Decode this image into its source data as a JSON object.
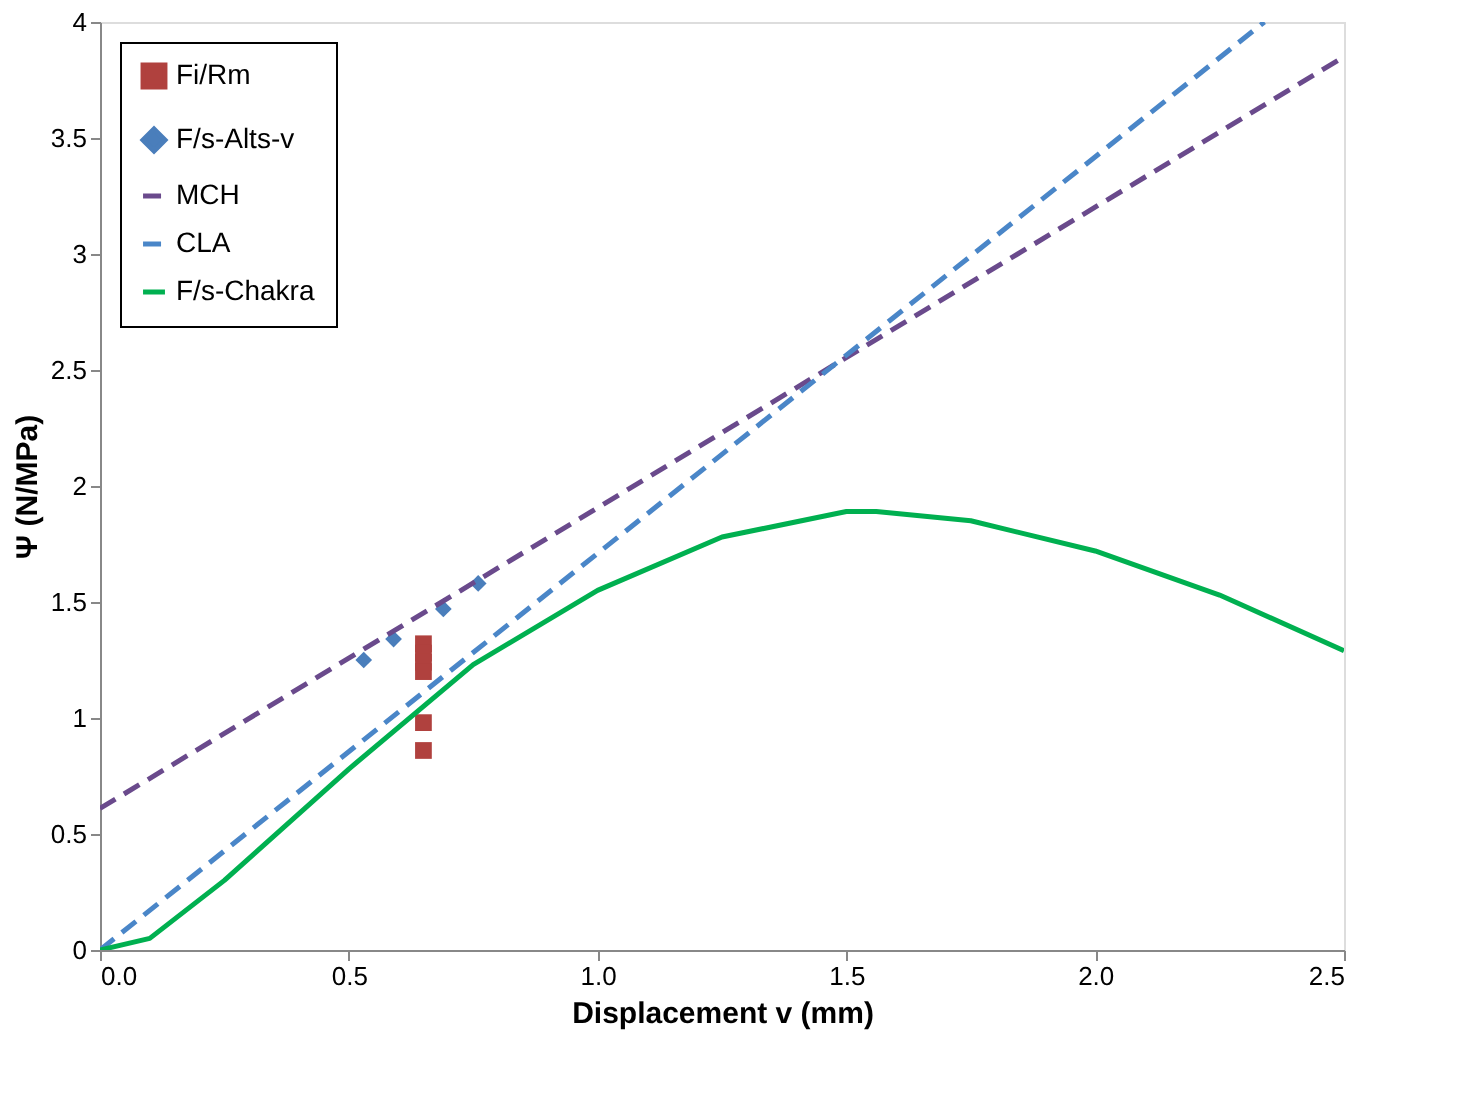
{
  "chart_data": {
    "type": "scatter",
    "xlabel": "Displacement v (mm)",
    "ylabel": "Ψ  (N/MPa)",
    "xlim": [
      0,
      2.5
    ],
    "ylim": [
      0,
      4
    ],
    "xticks": [
      {
        "value": 0,
        "label": "0.0"
      },
      0.5,
      {
        "value": 1,
        "label": "1.0"
      },
      1.5,
      {
        "value": 2,
        "label": "2.0"
      },
      2.5
    ],
    "yticks": [
      0,
      0.5,
      1,
      1.5,
      2,
      2.5,
      3,
      3.5,
      4
    ],
    "grid": false,
    "legend": "top left",
    "series": [
      {
        "name": "Fi/Rm",
        "marker": "square",
        "color": "#b0413e",
        "x": [
          0.65,
          0.65,
          0.65,
          0.65,
          0.65,
          0.65
        ],
        "values": [
          1.32,
          1.28,
          1.24,
          1.2,
          0.98,
          0.86
        ]
      },
      {
        "name": "F/s-Alts-v",
        "marker": "diamond",
        "color": "#4a7ebb",
        "x": [
          0.53,
          0.59,
          0.69,
          0.76
        ],
        "values": [
          1.25,
          1.34,
          1.47,
          1.58
        ]
      },
      {
        "name": "MCH",
        "type": "line",
        "marker": "none",
        "line_style": "dashed",
        "color": "#6a4a8c",
        "x": [
          0,
          2.5
        ],
        "values": [
          0.61,
          3.85
        ]
      },
      {
        "name": "CLA",
        "type": "line",
        "marker": "none",
        "line_style": "dashed",
        "color": "#4a86c8",
        "x": [
          0,
          2.34
        ],
        "values": [
          0,
          4
        ]
      },
      {
        "name": "F/s-Chakra",
        "type": "line",
        "marker": "none",
        "line_style": "solid",
        "color": "#00b050",
        "x": [
          0,
          0.1,
          0.25,
          0.5,
          0.75,
          1.0,
          1.25,
          1.5,
          1.56,
          1.75,
          2.0,
          2.25,
          2.5
        ],
        "values": [
          0,
          0.05,
          0.3,
          0.78,
          1.23,
          1.55,
          1.78,
          1.89,
          1.89,
          1.85,
          1.72,
          1.53,
          1.29
        ]
      }
    ]
  }
}
